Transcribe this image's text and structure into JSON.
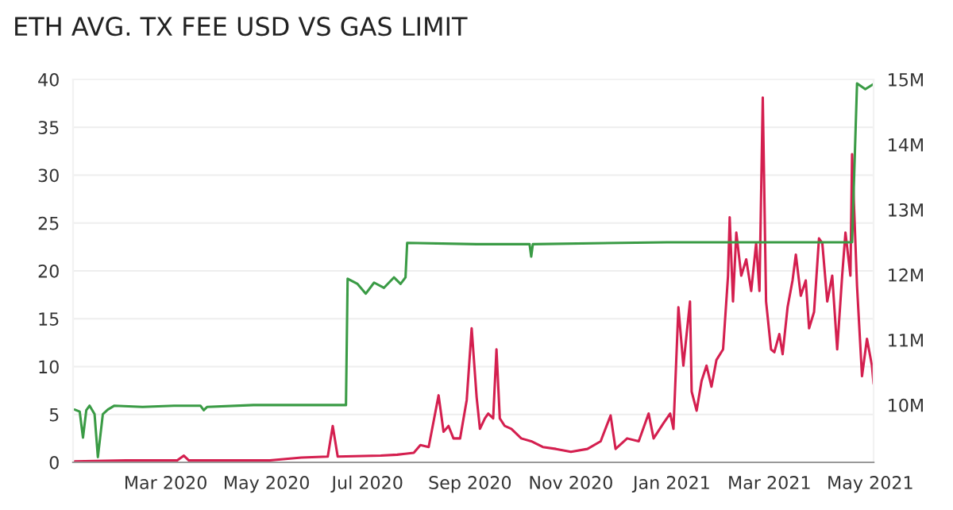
{
  "chart_data": {
    "type": "line",
    "title": "ETH AVG. TX FEE USD VS GAS LIMIT",
    "xlim": [
      "2020-01-05",
      "2021-05-03"
    ],
    "xticks": [
      {
        "value": "2020-03-01",
        "label": "Mar 2020"
      },
      {
        "value": "2020-05-01",
        "label": "May 2020"
      },
      {
        "value": "2020-07-01",
        "label": "Jul 2020"
      },
      {
        "value": "2020-09-01",
        "label": "Sep 2020"
      },
      {
        "value": "2020-11-01",
        "label": "Nov 2020"
      },
      {
        "value": "2021-01-01",
        "label": "Jan 2021"
      },
      {
        "value": "2021-03-01",
        "label": "Mar 2021"
      },
      {
        "value": "2021-05-01",
        "label": "May 2021"
      }
    ],
    "ylim": [
      0,
      40
    ],
    "yticks": [
      0,
      5,
      10,
      15,
      20,
      25,
      30,
      35,
      40
    ],
    "y2lim": [
      9120000,
      15000000
    ],
    "y2ticks": [
      {
        "value": 10000000,
        "label": "10M"
      },
      {
        "value": 11000000,
        "label": "11M"
      },
      {
        "value": 12000000,
        "label": "12M"
      },
      {
        "value": 13000000,
        "label": "13M"
      },
      {
        "value": 14000000,
        "label": "14M"
      },
      {
        "value": 15000000,
        "label": "15M"
      }
    ],
    "grid": "y",
    "marker": "none",
    "line_style": "solid",
    "series": [
      {
        "color": "#3a9b45",
        "axis": "y2",
        "x": [
          "2020-01-06",
          "2020-01-09",
          "2020-01-11",
          "2020-01-13",
          "2020-01-15",
          "2020-01-18",
          "2020-01-20",
          "2020-01-23",
          "2020-01-26",
          "2020-01-30",
          "2020-02-16",
          "2020-03-06",
          "2020-03-22",
          "2020-03-24",
          "2020-03-26",
          "2020-04-23",
          "2020-06-18",
          "2020-06-19",
          "2020-06-25",
          "2020-06-30",
          "2020-07-05",
          "2020-07-11",
          "2020-07-17",
          "2020-07-21",
          "2020-07-24",
          "2020-07-25",
          "2020-09-05",
          "2020-10-07",
          "2020-10-08",
          "2020-10-09",
          "2020-12-29",
          "2021-04-20",
          "2021-04-23",
          "2021-04-28",
          "2021-05-03"
        ],
        "values": [
          9930000,
          9900000,
          9500000,
          9920000,
          9990000,
          9860000,
          9200000,
          9860000,
          9930000,
          9990000,
          9970000,
          9990000,
          9990000,
          9920000,
          9970000,
          10000000,
          10000000,
          11940000,
          11860000,
          11710000,
          11880000,
          11800000,
          11960000,
          11860000,
          11960000,
          12490000,
          12470000,
          12470000,
          12280000,
          12470000,
          12500000,
          12500000,
          14940000,
          14850000,
          14930000
        ]
      },
      {
        "color": "#d41f4f",
        "x": [
          "2020-01-06",
          "2020-02-06",
          "2020-03-08",
          "2020-03-12",
          "2020-03-15",
          "2020-05-03",
          "2020-05-22",
          "2020-06-07",
          "2020-06-10",
          "2020-06-13",
          "2020-07-09",
          "2020-07-19",
          "2020-07-29",
          "2020-08-02",
          "2020-08-07",
          "2020-08-13",
          "2020-08-16",
          "2020-08-19",
          "2020-08-22",
          "2020-08-26",
          "2020-08-30",
          "2020-09-02",
          "2020-09-05",
          "2020-09-07",
          "2020-09-10",
          "2020-09-12",
          "2020-09-15",
          "2020-09-17",
          "2020-09-19",
          "2020-09-22",
          "2020-09-26",
          "2020-10-02",
          "2020-10-08",
          "2020-10-15",
          "2020-10-23",
          "2020-11-01",
          "2020-11-11",
          "2020-11-19",
          "2020-11-25",
          "2020-11-28",
          "2020-12-05",
          "2020-12-12",
          "2020-12-18",
          "2020-12-21",
          "2020-12-27",
          "2020-12-31",
          "2021-01-02",
          "2021-01-05",
          "2021-01-08",
          "2021-01-12",
          "2021-01-13",
          "2021-01-16",
          "2021-01-19",
          "2021-01-22",
          "2021-01-25",
          "2021-01-28",
          "2021-02-01",
          "2021-02-04",
          "2021-02-05",
          "2021-02-07",
          "2021-02-09",
          "2021-02-12",
          "2021-02-15",
          "2021-02-18",
          "2021-02-21",
          "2021-02-23",
          "2021-02-25",
          "2021-02-27",
          "2021-03-02",
          "2021-03-04",
          "2021-03-07",
          "2021-03-09",
          "2021-03-12",
          "2021-03-15",
          "2021-03-17",
          "2021-03-20",
          "2021-03-23",
          "2021-03-25",
          "2021-03-28",
          "2021-03-31",
          "2021-04-02",
          "2021-04-05",
          "2021-04-08",
          "2021-04-11",
          "2021-04-14",
          "2021-04-16",
          "2021-04-19",
          "2021-04-20",
          "2021-04-23",
          "2021-04-26",
          "2021-04-29",
          "2021-05-02",
          "2021-05-03"
        ],
        "values": [
          0.1,
          0.2,
          0.2,
          0.7,
          0.2,
          0.2,
          0.5,
          0.6,
          3.8,
          0.6,
          0.7,
          0.8,
          1.0,
          1.8,
          1.6,
          7.0,
          3.2,
          3.8,
          2.5,
          2.5,
          6.5,
          14.0,
          6.8,
          3.5,
          4.6,
          5.1,
          4.6,
          11.8,
          4.6,
          3.8,
          3.5,
          2.5,
          2.2,
          1.6,
          1.4,
          1.1,
          1.4,
          2.2,
          4.9,
          1.4,
          2.5,
          2.2,
          5.1,
          2.5,
          4.1,
          5.1,
          3.5,
          16.2,
          10.1,
          16.8,
          7.4,
          5.4,
          8.5,
          10.1,
          7.9,
          10.7,
          11.8,
          19.5,
          25.6,
          16.8,
          24.0,
          19.5,
          21.2,
          17.9,
          22.9,
          17.9,
          38.1,
          16.8,
          11.8,
          11.5,
          13.4,
          11.3,
          16.2,
          19.0,
          21.7,
          17.4,
          19.0,
          14.0,
          15.7,
          23.4,
          22.9,
          16.8,
          19.5,
          11.8,
          19.5,
          24.0,
          19.5,
          32.2,
          18.4,
          9.0,
          12.9,
          10.1,
          8.2
        ]
      }
    ]
  }
}
